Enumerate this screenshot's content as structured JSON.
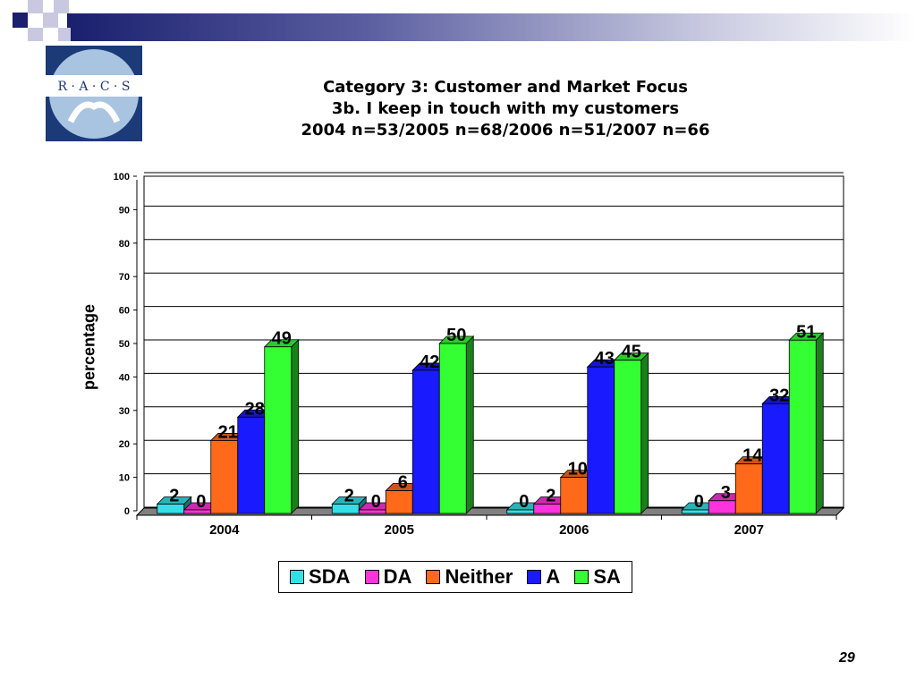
{
  "slide": {
    "title_lines": [
      "Category 3: Customer and Market Focus",
      "3b. I keep in touch with my customers",
      "2004 n=53/2005 n=68/2006 n=51/2007 n=66"
    ],
    "logo_text": "R · A · C · S",
    "page_number": "29"
  },
  "colors": {
    "SDA": "#33e0e6",
    "DA": "#ff33dd",
    "Neither": "#ff6a1a",
    "A": "#1a1aff",
    "SA": "#33ff33"
  },
  "chart_data": {
    "type": "bar",
    "categories": [
      "2004",
      "2005",
      "2006",
      "2007"
    ],
    "series": [
      {
        "name": "SDA",
        "values": [
          2,
          2,
          0,
          0
        ]
      },
      {
        "name": "DA",
        "values": [
          0,
          0,
          2,
          3
        ]
      },
      {
        "name": "Neither",
        "values": [
          21,
          6,
          10,
          14
        ]
      },
      {
        "name": "A",
        "values": [
          28,
          42,
          43,
          32
        ]
      },
      {
        "name": "SA",
        "values": [
          49,
          50,
          45,
          51
        ]
      }
    ],
    "ylabel": "percentage",
    "ylim": [
      0,
      100
    ],
    "yticks": [
      0,
      10,
      20,
      30,
      40,
      50,
      60,
      70,
      80,
      90,
      100
    ],
    "grid": true,
    "legend": "bottom"
  }
}
